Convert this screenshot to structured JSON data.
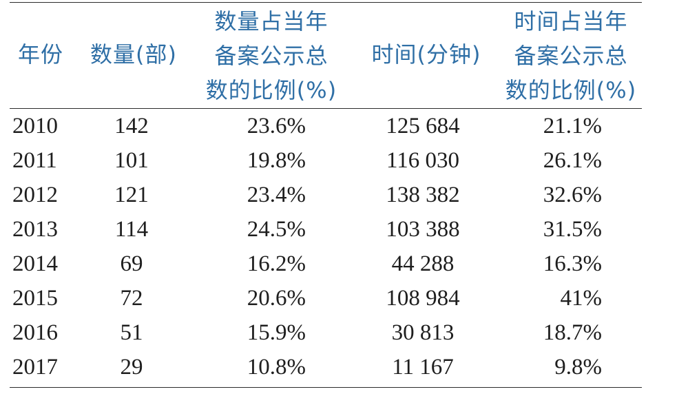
{
  "headers": {
    "year": [
      "年份"
    ],
    "count": [
      "数量(部)"
    ],
    "count_ratio": [
      "数量占当年",
      "备案公示总",
      "数的比例(%)"
    ],
    "time": [
      "时间(分钟)"
    ],
    "time_ratio": [
      "时间占当年",
      "备案公示总",
      "数的比例(%)"
    ]
  },
  "rows": [
    {
      "year": "2010",
      "count": "142",
      "count_ratio": "23.6%",
      "time": "125 684",
      "time_ratio": "21.1%"
    },
    {
      "year": "2011",
      "count": "101",
      "count_ratio": "19.8%",
      "time": "116 030",
      "time_ratio": "26.1%"
    },
    {
      "year": "2012",
      "count": "121",
      "count_ratio": "23.4%",
      "time": "138 382",
      "time_ratio": "32.6%"
    },
    {
      "year": "2013",
      "count": "114",
      "count_ratio": "24.5%",
      "time": "103 388",
      "time_ratio": "31.5%"
    },
    {
      "year": "2014",
      "count": "69",
      "count_ratio": "16.2%",
      "time": "44 288",
      "time_ratio": "16.3%"
    },
    {
      "year": "2015",
      "count": "72",
      "count_ratio": "20.6%",
      "time": "108 984",
      "time_ratio": "41%"
    },
    {
      "year": "2016",
      "count": "51",
      "count_ratio": "15.9%",
      "time": "30 813",
      "time_ratio": "18.7%"
    },
    {
      "year": "2017",
      "count": "29",
      "count_ratio": "10.8%",
      "time": "11 167",
      "time_ratio": "9.8%"
    }
  ]
}
